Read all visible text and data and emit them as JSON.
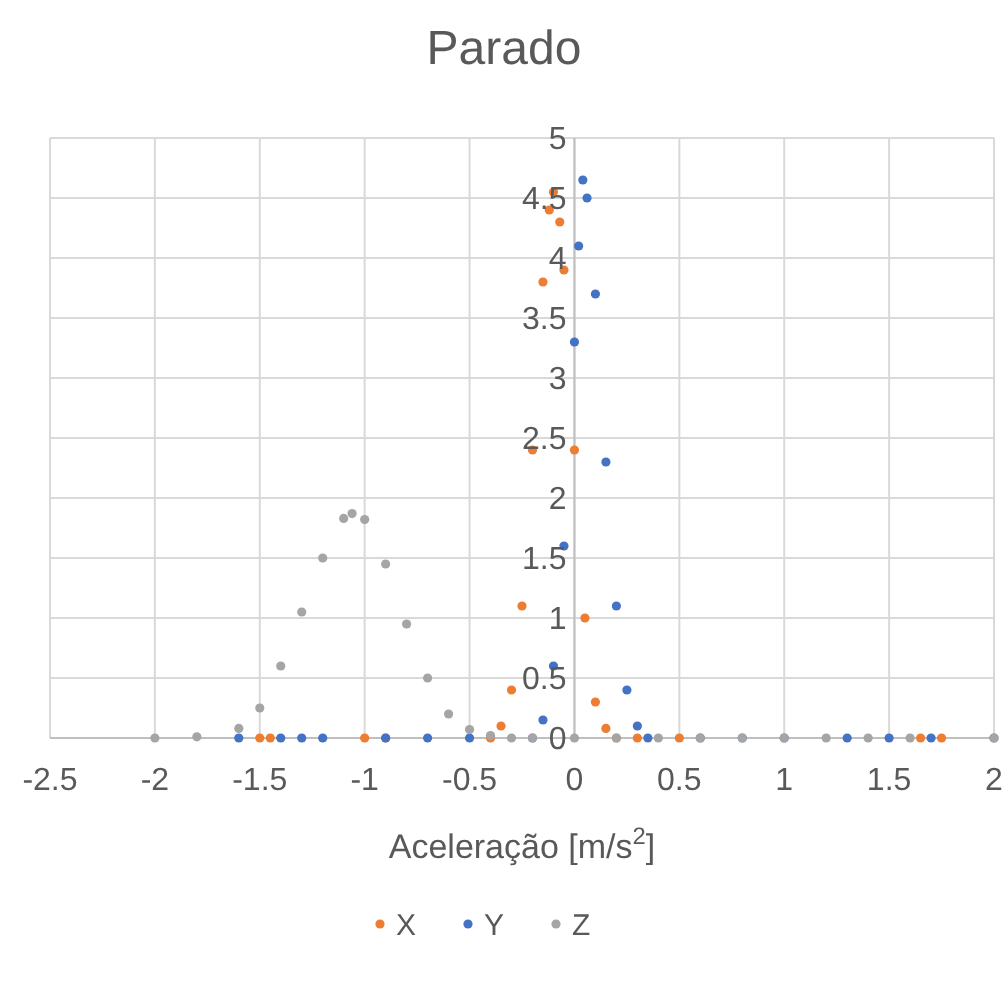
{
  "chart_data": {
    "type": "scatter",
    "title": "Parado",
    "xlabel": "Aceleração [m/s$^{2}$]",
    "xlim": [
      -2.5,
      2
    ],
    "xticks": [
      -2.5,
      -2,
      -1.5,
      -1,
      -0.5,
      0,
      0.5,
      1,
      1.5,
      2
    ],
    "ylim": [
      0,
      5
    ],
    "yticks": [
      0,
      0.5,
      1,
      1.5,
      2,
      2.5,
      3,
      3.5,
      4,
      4.5,
      5
    ],
    "grid": true,
    "legend": "bottom",
    "marker": "circle",
    "series": [
      {
        "name": "X",
        "color": "#ed7d31",
        "x": [
          -1.5,
          -1.45,
          -1.0,
          -0.9,
          -0.4,
          -0.35,
          -0.3,
          -0.25,
          -0.2,
          -0.15,
          -0.12,
          -0.1,
          -0.07,
          -0.05,
          0,
          0.05,
          0.1,
          0.15,
          0.2,
          0.3,
          0.5,
          1.65,
          1.75
        ],
        "values": [
          0,
          0,
          0,
          0,
          0,
          0.1,
          0.4,
          1.1,
          2.4,
          3.8,
          4.4,
          4.55,
          4.3,
          3.9,
          2.4,
          1.0,
          0.3,
          0.08,
          0,
          0,
          0,
          0,
          0
        ]
      },
      {
        "name": "Y",
        "color": "#4472c4",
        "x": [
          -1.6,
          -1.4,
          -1.3,
          -1.2,
          -0.9,
          -0.7,
          -0.5,
          -0.2,
          -0.15,
          -0.1,
          -0.05,
          0,
          0.02,
          0.04,
          0.06,
          0.1,
          0.15,
          0.2,
          0.25,
          0.3,
          0.35,
          0.6,
          0.8,
          1.0,
          1.3,
          1.5,
          1.7,
          2.0
        ],
        "values": [
          0,
          0,
          0,
          0,
          0,
          0,
          0,
          0,
          0.15,
          0.6,
          1.6,
          3.3,
          4.1,
          4.65,
          4.5,
          3.7,
          2.3,
          1.1,
          0.4,
          0.1,
          0,
          0,
          0,
          0,
          0,
          0,
          0,
          0
        ]
      },
      {
        "name": "Z",
        "color": "#a5a5a5",
        "x": [
          -2,
          -1.8,
          -1.6,
          -1.5,
          -1.4,
          -1.3,
          -1.2,
          -1.1,
          -1.06,
          -1.0,
          -0.9,
          -0.8,
          -0.7,
          -0.6,
          -0.5,
          -0.4,
          -0.3,
          -0.2,
          0,
          0.2,
          0.4,
          0.6,
          0.8,
          1.0,
          1.2,
          1.4,
          1.6,
          2.0
        ],
        "values": [
          0,
          0.01,
          0.08,
          0.25,
          0.6,
          1.05,
          1.5,
          1.83,
          1.87,
          1.82,
          1.45,
          0.95,
          0.5,
          0.2,
          0.07,
          0.02,
          0,
          0,
          0,
          0,
          0,
          0,
          0,
          0,
          0,
          0,
          0,
          0
        ]
      }
    ]
  }
}
